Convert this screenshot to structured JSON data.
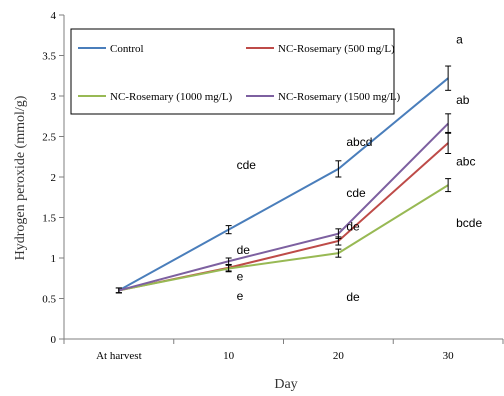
{
  "chart_data": {
    "type": "line",
    "xlabel": "Day",
    "ylabel": "Hydrogen peroxide (mmol/g)",
    "categories": [
      "At harvest",
      "10",
      "20",
      "30"
    ],
    "ylim": [
      0,
      4
    ],
    "yticks": [
      "0",
      "0.5",
      "1",
      "1.5",
      "2",
      "2.5",
      "3",
      "3.5",
      "4"
    ],
    "grid": false,
    "legend_position": "top",
    "series": [
      {
        "name": "Control",
        "color": "#4a7ebb",
        "values": [
          0.6,
          1.35,
          2.1,
          3.22
        ],
        "errors": [
          0.03,
          0.05,
          0.1,
          0.15
        ]
      },
      {
        "name": "NC-Rosemary (500 mg/L)",
        "color": "#be4b48",
        "values": [
          0.6,
          0.88,
          1.21,
          2.42
        ],
        "errors": [
          0.03,
          0.04,
          0.05,
          0.13
        ]
      },
      {
        "name": "NC-Rosemary (1000 mg/L)",
        "color": "#98b954",
        "values": [
          0.6,
          0.87,
          1.06,
          1.9
        ],
        "errors": [
          0.03,
          0.04,
          0.05,
          0.08
        ]
      },
      {
        "name": "NC-Rosemary (1500 mg/L)",
        "color": "#7d60a0",
        "values": [
          0.6,
          0.96,
          1.3,
          2.66
        ],
        "errors": [
          0.03,
          0.04,
          0.06,
          0.12
        ]
      }
    ],
    "annotations": [
      {
        "text": "a",
        "x": "30",
        "y": 3.7
      },
      {
        "text": "ab",
        "x": "30",
        "y": 2.95
      },
      {
        "text": "abc",
        "x": "30",
        "y": 2.19
      },
      {
        "text": "bcde",
        "x": "30",
        "y": 1.43
      },
      {
        "text": "abcd",
        "x": "20",
        "y": 2.43
      },
      {
        "text": "cde",
        "x": "20",
        "y": 1.8
      },
      {
        "text": "de",
        "x": "20",
        "y": 1.39
      },
      {
        "text": "de",
        "x": "20",
        "y": 0.52
      },
      {
        "text": "cde",
        "x": "10",
        "y": 2.15
      },
      {
        "text": "de",
        "x": "10",
        "y": 1.1
      },
      {
        "text": "e",
        "x": "10",
        "y": 0.77
      },
      {
        "text": "e",
        "x": "10",
        "y": 0.53
      }
    ]
  }
}
